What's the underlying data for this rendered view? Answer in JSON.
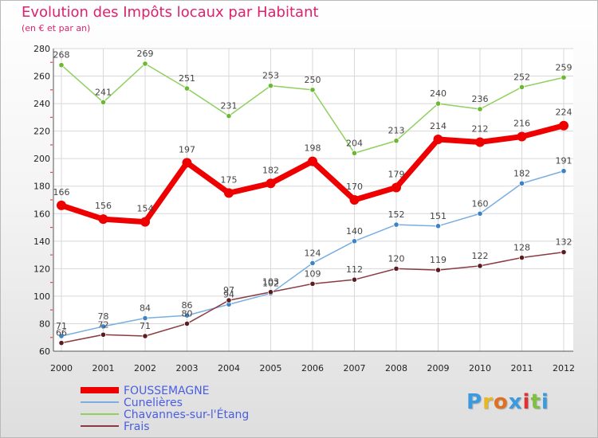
{
  "title": "Evolution des Impôts locaux par Habitant",
  "subtitle": "(en € et par an)",
  "logo": {
    "text": "Proxiti",
    "letter_colors": [
      "#3a9be0",
      "#e8b820",
      "#e07020",
      "#3a9be0",
      "#e03030",
      "#80c040",
      "#3a9be0"
    ]
  },
  "chart_data": {
    "type": "line",
    "title": "Evolution des Impôts locaux par Habitant",
    "subtitle": "(en € et par an)",
    "xlabel": "",
    "ylabel": "",
    "ylim": [
      60,
      280
    ],
    "yticks": [
      60,
      80,
      100,
      120,
      140,
      160,
      180,
      200,
      220,
      240,
      260,
      280
    ],
    "grid": true,
    "legend_position": "bottom-left",
    "x": [
      "2000",
      "2001",
      "2002",
      "2003",
      "2004",
      "2005",
      "2006",
      "2007",
      "2008",
      "2009",
      "2010",
      "2011",
      "2012"
    ],
    "series": [
      {
        "name": "Chavannes-sur-l'Étang",
        "color": "#8fd060",
        "marker": "#6cb830",
        "emphasis": false,
        "values": [
          268,
          241,
          269,
          251,
          231,
          253,
          250,
          204,
          213,
          240,
          236,
          252,
          259
        ]
      },
      {
        "name": "Cunelières",
        "color": "#7aaee0",
        "marker": "#3c82c8",
        "emphasis": false,
        "values": [
          71,
          78,
          84,
          86,
          94,
          102,
          124,
          140,
          152,
          151,
          160,
          182,
          191
        ]
      },
      {
        "name": "Frais",
        "color": "#8a3a40",
        "marker": "#5a1c20",
        "emphasis": false,
        "values": [
          66,
          72,
          71,
          80,
          97,
          103,
          109,
          112,
          120,
          119,
          122,
          128,
          132
        ]
      },
      {
        "name": "FOUSSEMAGNE",
        "color": "#ee0000",
        "marker": "#ee0000",
        "emphasis": true,
        "values": [
          166,
          156,
          154,
          197,
          175,
          182,
          198,
          170,
          179,
          214,
          212,
          216,
          224
        ]
      }
    ],
    "legend_order": [
      "FOUSSEMAGNE",
      "Cunelières",
      "Chavannes-sur-l'Étang",
      "Frais"
    ]
  }
}
